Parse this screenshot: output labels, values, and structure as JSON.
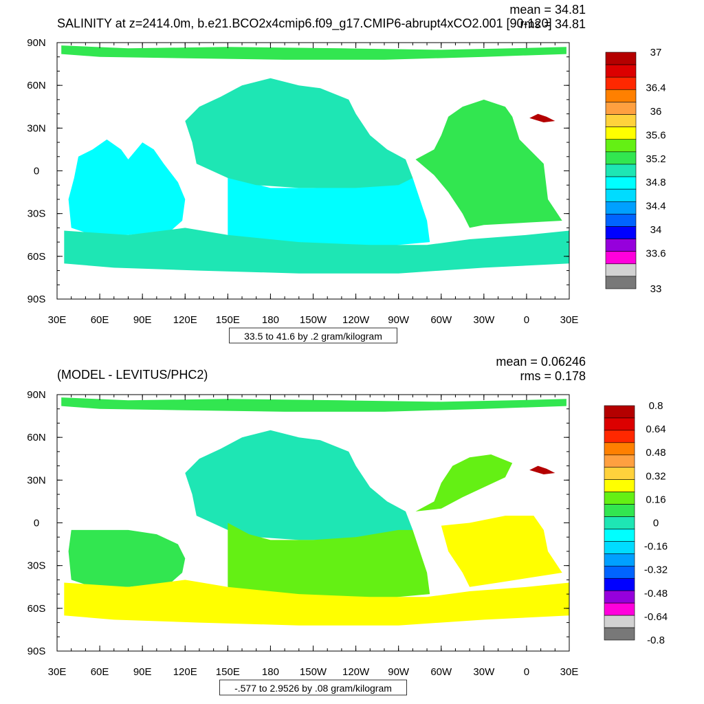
{
  "chart_data": [
    {
      "type": "heatmap",
      "title": "SALINITY at z=2414.0m, b.e21.BCO2x4cmip6.f09_g17.CMIP6-abrupt4xCO2.001 [90-120]",
      "stats": {
        "mean": "mean = 34.81",
        "rms": "rms = 34.81"
      },
      "x_ticks": [
        "30E",
        "60E",
        "90E",
        "120E",
        "150E",
        "180",
        "150W",
        "120W",
        "90W",
        "60W",
        "30W",
        "0",
        "30E"
      ],
      "y_ticks": [
        "90N",
        "60N",
        "30N",
        "0",
        "30S",
        "60S",
        "90S"
      ],
      "xlim": [
        30,
        390
      ],
      "ylim": [
        -90,
        90
      ],
      "range_label": "33.5 to 41.6 by .2 gram/kilogram",
      "colorbar_colors": [
        "#b40000",
        "#dc0000",
        "#ff2800",
        "#ff8000",
        "#ffa040",
        "#ffd23c",
        "#ffff00",
        "#64f014",
        "#32e650",
        "#1ee6b4",
        "#00ffff",
        "#00dcff",
        "#00a0ff",
        "#0064ff",
        "#0000ff",
        "#9600dc",
        "#ff00dc",
        "#d2d2d2",
        "#787878"
      ],
      "colorbar_labels": [
        {
          "text": "37",
          "level": 37.0
        },
        {
          "text": "36.4",
          "level": 36.4
        },
        {
          "text": "36",
          "level": 36.0
        },
        {
          "text": "35.6",
          "level": 35.6
        },
        {
          "text": "35.2",
          "level": 35.2
        },
        {
          "text": "34.8",
          "level": 34.8
        },
        {
          "text": "34.4",
          "level": 34.4
        },
        {
          "text": "34",
          "level": 34.0
        },
        {
          "text": "33.6",
          "level": 33.6
        },
        {
          "text": "33",
          "level": 33.0
        }
      ],
      "colorbar_top_level": 37.0,
      "colorbar_bottom_level": 33.0,
      "regions": [
        {
          "name": "pacific-south",
          "color": "#00ffff"
        },
        {
          "name": "pacific-north",
          "color": "#1ee6b4"
        },
        {
          "name": "indian",
          "color": "#00ffff"
        },
        {
          "name": "atlantic",
          "color": "#32e650"
        },
        {
          "name": "southern-ocean",
          "color": "#1ee6b4"
        },
        {
          "name": "arctic",
          "color": "#32e650"
        },
        {
          "name": "med-sea",
          "color": "#b40000"
        }
      ]
    },
    {
      "type": "heatmap",
      "title": "(MODEL - LEVITUS/PHC2)",
      "stats": {
        "mean": "mean = 0.06246",
        "rms": "rms = 0.178"
      },
      "x_ticks": [
        "30E",
        "60E",
        "90E",
        "120E",
        "150E",
        "180",
        "150W",
        "120W",
        "90W",
        "60W",
        "30W",
        "0",
        "30E"
      ],
      "y_ticks": [
        "90N",
        "60N",
        "30N",
        "0",
        "30S",
        "60S",
        "90S"
      ],
      "xlim": [
        30,
        390
      ],
      "ylim": [
        -90,
        90
      ],
      "range_label": "-.577 to 2.9526 by .08 gram/kilogram",
      "colorbar_colors": [
        "#b40000",
        "#dc0000",
        "#ff2800",
        "#ff8000",
        "#ffa040",
        "#ffd23c",
        "#ffff00",
        "#64f014",
        "#32e650",
        "#1ee6b4",
        "#00ffff",
        "#00dcff",
        "#00a0ff",
        "#0064ff",
        "#0000ff",
        "#9600dc",
        "#ff00dc",
        "#d2d2d2",
        "#787878"
      ],
      "colorbar_labels": [
        {
          "text": "0.8",
          "level": 0.8
        },
        {
          "text": "0.64",
          "level": 0.64
        },
        {
          "text": "0.48",
          "level": 0.48
        },
        {
          "text": "0.32",
          "level": 0.32
        },
        {
          "text": "0.16",
          "level": 0.16
        },
        {
          "text": "0",
          "level": 0.0
        },
        {
          "text": "-0.16",
          "level": -0.16
        },
        {
          "text": "-0.32",
          "level": -0.32
        },
        {
          "text": "-0.48",
          "level": -0.48
        },
        {
          "text": "-0.64",
          "level": -0.64
        },
        {
          "text": "-0.8",
          "level": -0.8
        }
      ],
      "colorbar_top_level": 0.8,
      "colorbar_bottom_level": -0.8,
      "regions": [
        {
          "name": "pacific-north",
          "color": "#1ee6b4"
        },
        {
          "name": "pacific-south",
          "color": "#64f014"
        },
        {
          "name": "indian-south",
          "color": "#32e650"
        },
        {
          "name": "southern-ocean",
          "color": "#ffff00"
        },
        {
          "name": "atlantic-south",
          "color": "#ffff00"
        },
        {
          "name": "atlantic-north",
          "color": "#64f014"
        },
        {
          "name": "arctic",
          "color": "#32e650"
        },
        {
          "name": "med-sea",
          "color": "#b40000"
        }
      ]
    }
  ]
}
